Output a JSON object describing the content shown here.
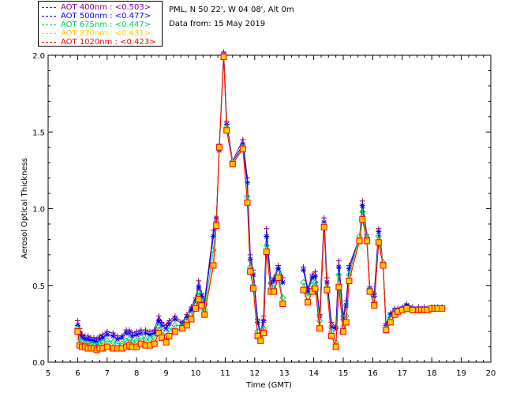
{
  "header": {
    "site": "PML, N 50 22', W 04 08', Alt 0m",
    "date": "Data from: 15 May 2019"
  },
  "chart_data": {
    "type": "line",
    "xlabel": "Time (GMT)",
    "ylabel": "Aerosol Optical Thickness",
    "xlim": [
      5,
      20
    ],
    "ylim": [
      0.0,
      2.0
    ],
    "xticks": [
      5,
      6,
      7,
      8,
      9,
      10,
      11,
      12,
      13,
      14,
      15,
      16,
      17,
      18,
      19,
      20
    ],
    "yticks": [
      "0.0",
      "0.5",
      "1.0",
      "1.5",
      "2.0"
    ],
    "yticks_values": [
      0.0,
      0.5,
      1.0,
      1.5,
      2.0
    ],
    "series": [
      {
        "name": "AOT  400nm : <0.503>",
        "color": "#800080",
        "marker": "plus",
        "x": [
          6.0,
          6.07,
          6.15,
          6.25,
          6.35,
          6.45,
          6.55,
          6.65,
          6.75,
          6.85,
          7.0,
          7.2,
          7.35,
          7.5,
          7.65,
          7.75,
          7.85,
          8.0,
          8.15,
          8.3,
          8.45,
          8.6,
          8.75,
          8.85,
          9.0,
          9.1,
          9.3,
          9.55,
          9.7,
          9.85,
          10.0,
          10.1,
          10.2,
          10.3,
          10.6,
          10.7,
          10.8,
          10.95,
          11.05,
          11.25,
          11.6,
          11.75,
          11.85,
          11.95,
          12.1,
          12.2,
          12.3,
          12.4,
          12.55,
          12.65,
          12.8,
          12.95,
          13.65,
          13.8,
          13.95,
          14.05,
          14.2,
          14.35,
          14.45,
          14.6,
          14.75,
          14.85,
          15.0,
          15.1,
          15.2,
          15.55,
          15.65,
          15.8,
          15.9,
          16.05,
          16.2,
          16.35,
          16.45,
          16.6,
          16.75,
          16.85,
          17.0,
          17.15,
          17.35,
          17.55,
          17.65,
          17.75,
          17.85,
          18.0,
          18.1,
          18.2,
          18.35
        ],
        "y": [
          0.27,
          0.22,
          0.18,
          0.17,
          0.17,
          0.16,
          0.16,
          0.15,
          0.17,
          0.18,
          0.2,
          0.19,
          0.17,
          0.17,
          0.21,
          0.21,
          0.19,
          0.2,
          0.21,
          0.21,
          0.2,
          0.21,
          0.3,
          0.26,
          0.24,
          0.27,
          0.3,
          0.26,
          0.31,
          0.36,
          0.42,
          0.53,
          0.45,
          0.4,
          0.86,
          0.92,
          1.42,
          2.02,
          1.57,
          1.31,
          1.45,
          1.2,
          0.7,
          0.6,
          0.28,
          0.19,
          0.3,
          0.87,
          0.52,
          0.55,
          0.63,
          0.55,
          0.62,
          0.48,
          0.57,
          0.59,
          0.31,
          0.94,
          0.55,
          0.26,
          0.23,
          0.66,
          0.3,
          0.4,
          0.63,
          0.81,
          1.05,
          0.83,
          0.49,
          0.45,
          0.87,
          0.65,
          0.25,
          0.32,
          0.35,
          0.35,
          0.36,
          0.38,
          0.36,
          0.36,
          0.35,
          0.36,
          0.35,
          0.36,
          0.36,
          0.36,
          0.36
        ]
      },
      {
        "name": "AOT  500nm : <0.477>",
        "color": "#0000ff",
        "marker": "asterisk",
        "x": [
          6.0,
          6.07,
          6.15,
          6.25,
          6.35,
          6.45,
          6.55,
          6.65,
          6.75,
          6.85,
          7.0,
          7.2,
          7.35,
          7.5,
          7.65,
          7.75,
          7.85,
          8.0,
          8.15,
          8.3,
          8.45,
          8.6,
          8.75,
          8.85,
          9.0,
          9.1,
          9.3,
          9.55,
          9.7,
          9.85,
          10.0,
          10.1,
          10.2,
          10.3,
          10.6,
          10.7,
          10.8,
          10.95,
          11.05,
          11.25,
          11.6,
          11.75,
          11.85,
          11.95,
          12.1,
          12.2,
          12.3,
          12.4,
          12.55,
          12.65,
          12.8,
          12.95,
          13.65,
          13.8,
          13.95,
          14.05,
          14.2,
          14.35,
          14.45,
          14.6,
          14.75,
          14.85,
          15.0,
          15.1,
          15.2,
          15.55,
          15.65,
          15.8,
          15.9,
          16.05,
          16.2,
          16.35,
          16.45,
          16.6,
          16.75,
          16.85,
          17.0,
          17.15,
          17.35,
          17.55,
          17.65,
          17.75,
          17.85,
          18.0,
          18.1,
          18.2,
          18.35
        ],
        "y": [
          0.24,
          0.19,
          0.16,
          0.15,
          0.15,
          0.14,
          0.14,
          0.13,
          0.15,
          0.16,
          0.18,
          0.17,
          0.15,
          0.16,
          0.19,
          0.19,
          0.17,
          0.18,
          0.19,
          0.19,
          0.18,
          0.19,
          0.27,
          0.24,
          0.22,
          0.25,
          0.28,
          0.25,
          0.29,
          0.34,
          0.4,
          0.49,
          0.43,
          0.38,
          0.82,
          0.94,
          1.38,
          2.01,
          1.55,
          1.3,
          1.42,
          1.17,
          0.67,
          0.57,
          0.26,
          0.17,
          0.27,
          0.82,
          0.51,
          0.53,
          0.61,
          0.52,
          0.6,
          0.46,
          0.55,
          0.56,
          0.3,
          0.91,
          0.52,
          0.23,
          0.22,
          0.62,
          0.28,
          0.37,
          0.61,
          0.8,
          1.02,
          0.81,
          0.48,
          0.43,
          0.85,
          0.63,
          0.24,
          0.31,
          0.34,
          0.34,
          0.35,
          0.37,
          0.35,
          0.35,
          0.34,
          0.35,
          0.34,
          0.35,
          0.35,
          0.35,
          0.35
        ]
      },
      {
        "name": "AOT  675nm : <0.447>",
        "color": "#00cc66",
        "marker": "diamond",
        "x": [
          6.0,
          6.07,
          6.15,
          6.25,
          6.35,
          6.45,
          6.55,
          6.65,
          6.75,
          6.85,
          7.0,
          7.2,
          7.35,
          7.5,
          7.65,
          7.75,
          7.85,
          8.0,
          8.15,
          8.3,
          8.45,
          8.6,
          8.75,
          8.85,
          9.0,
          9.1,
          9.3,
          9.55,
          9.7,
          9.85,
          10.0,
          10.1,
          10.2,
          10.3,
          10.6,
          10.7,
          10.8,
          10.95,
          11.05,
          11.25,
          11.6,
          11.75,
          11.85,
          11.95,
          12.1,
          12.2,
          12.3,
          12.4,
          12.55,
          12.65,
          12.8,
          12.95,
          13.65,
          13.8,
          13.95,
          14.05,
          14.2,
          14.35,
          14.45,
          14.6,
          14.75,
          14.85,
          15.0,
          15.1,
          15.2,
          15.55,
          15.65,
          15.8,
          15.9,
          16.05,
          16.2,
          16.35,
          16.45,
          16.6,
          16.75,
          16.85,
          17.0,
          17.15,
          17.35,
          17.55,
          17.65,
          17.75,
          17.85,
          18.0,
          18.1,
          18.2,
          18.35
        ],
        "y": [
          0.22,
          0.15,
          0.13,
          0.12,
          0.12,
          0.12,
          0.11,
          0.11,
          0.12,
          0.13,
          0.14,
          0.13,
          0.12,
          0.12,
          0.14,
          0.15,
          0.13,
          0.14,
          0.16,
          0.15,
          0.15,
          0.16,
          0.23,
          0.2,
          0.17,
          0.21,
          0.24,
          0.24,
          0.27,
          0.31,
          0.38,
          0.45,
          0.4,
          0.34,
          0.73,
          0.91,
          1.4,
          2.0,
          1.53,
          1.3,
          1.4,
          1.08,
          0.62,
          0.5,
          0.2,
          0.15,
          0.22,
          0.76,
          0.48,
          0.48,
          0.58,
          0.42,
          0.52,
          0.43,
          0.5,
          0.52,
          0.27,
          0.89,
          0.49,
          0.2,
          0.13,
          0.57,
          0.23,
          0.3,
          0.57,
          0.82,
          0.98,
          0.81,
          0.47,
          0.39,
          0.82,
          0.65,
          0.22,
          0.29,
          0.33,
          0.33,
          0.34,
          0.35,
          0.34,
          0.34,
          0.34,
          0.34,
          0.34,
          0.35,
          0.35,
          0.35,
          0.35
        ]
      },
      {
        "name": "AOT  870nm : <0.431>",
        "color": "#ffcc00",
        "marker": "triangle",
        "x": [
          6.0,
          6.07,
          6.15,
          6.25,
          6.35,
          6.45,
          6.55,
          6.65,
          6.75,
          6.85,
          7.0,
          7.2,
          7.35,
          7.5,
          7.65,
          7.75,
          7.85,
          8.0,
          8.15,
          8.3,
          8.45,
          8.6,
          8.75,
          8.85,
          9.0,
          9.1,
          9.3,
          9.55,
          9.7,
          9.85,
          10.0,
          10.1,
          10.2,
          10.3,
          10.6,
          10.7,
          10.8,
          10.95,
          11.05,
          11.25,
          11.6,
          11.75,
          11.85,
          11.95,
          12.1,
          12.2,
          12.3,
          12.4,
          12.55,
          12.65,
          12.8,
          12.95,
          13.65,
          13.8,
          13.95,
          14.05,
          14.2,
          14.35,
          14.45,
          14.6,
          14.75,
          14.85,
          15.0,
          15.1,
          15.2,
          15.55,
          15.65,
          15.8,
          15.9,
          16.05,
          16.2,
          16.35,
          16.45,
          16.6,
          16.75,
          16.85,
          17.0,
          17.15,
          17.35,
          17.55,
          17.65,
          17.75,
          17.85,
          18.0,
          18.1,
          18.2,
          18.35
        ],
        "y": [
          0.21,
          0.12,
          0.11,
          0.1,
          0.1,
          0.1,
          0.09,
          0.09,
          0.1,
          0.1,
          0.11,
          0.1,
          0.09,
          0.1,
          0.11,
          0.12,
          0.1,
          0.11,
          0.13,
          0.12,
          0.12,
          0.13,
          0.2,
          0.17,
          0.14,
          0.18,
          0.21,
          0.22,
          0.25,
          0.29,
          0.36,
          0.42,
          0.38,
          0.32,
          0.66,
          0.89,
          1.4,
          1.99,
          1.52,
          1.3,
          1.39,
          1.05,
          0.6,
          0.49,
          0.18,
          0.14,
          0.2,
          0.73,
          0.47,
          0.46,
          0.56,
          0.39,
          0.48,
          0.4,
          0.47,
          0.49,
          0.24,
          0.89,
          0.48,
          0.18,
          0.11,
          0.51,
          0.21,
          0.27,
          0.54,
          0.8,
          0.94,
          0.8,
          0.46,
          0.37,
          0.79,
          0.64,
          0.21,
          0.27,
          0.32,
          0.33,
          0.34,
          0.35,
          0.34,
          0.34,
          0.34,
          0.34,
          0.34,
          0.35,
          0.35,
          0.35,
          0.35
        ]
      },
      {
        "name": "AOT 1020nm : <0.423>",
        "color": "#ff0000",
        "marker": "square",
        "x": [
          6.0,
          6.07,
          6.15,
          6.25,
          6.35,
          6.45,
          6.55,
          6.65,
          6.75,
          6.85,
          7.0,
          7.2,
          7.35,
          7.5,
          7.65,
          7.75,
          7.85,
          8.0,
          8.15,
          8.3,
          8.45,
          8.6,
          8.75,
          8.85,
          9.0,
          9.1,
          9.3,
          9.55,
          9.7,
          9.85,
          10.0,
          10.1,
          10.2,
          10.3,
          10.6,
          10.7,
          10.8,
          10.95,
          11.05,
          11.25,
          11.6,
          11.75,
          11.85,
          11.95,
          12.1,
          12.2,
          12.3,
          12.4,
          12.55,
          12.65,
          12.8,
          12.95,
          13.65,
          13.8,
          13.95,
          14.05,
          14.2,
          14.35,
          14.45,
          14.6,
          14.75,
          14.85,
          15.0,
          15.1,
          15.2,
          15.55,
          15.65,
          15.8,
          15.9,
          16.05,
          16.2,
          16.35,
          16.45,
          16.6,
          16.75,
          16.85,
          17.0,
          17.15,
          17.35,
          17.55,
          17.65,
          17.75,
          17.85,
          18.0,
          18.1,
          18.2,
          18.35
        ],
        "y": [
          0.2,
          0.11,
          0.1,
          0.1,
          0.09,
          0.09,
          0.09,
          0.08,
          0.09,
          0.09,
          0.1,
          0.09,
          0.09,
          0.09,
          0.1,
          0.11,
          0.1,
          0.1,
          0.12,
          0.11,
          0.11,
          0.12,
          0.19,
          0.16,
          0.13,
          0.17,
          0.2,
          0.22,
          0.24,
          0.28,
          0.35,
          0.41,
          0.37,
          0.31,
          0.63,
          0.89,
          1.4,
          1.99,
          1.51,
          1.29,
          1.39,
          1.04,
          0.59,
          0.48,
          0.17,
          0.14,
          0.19,
          0.72,
          0.46,
          0.46,
          0.55,
          0.38,
          0.47,
          0.39,
          0.46,
          0.48,
          0.22,
          0.88,
          0.47,
          0.17,
          0.1,
          0.49,
          0.2,
          0.26,
          0.53,
          0.79,
          0.93,
          0.79,
          0.46,
          0.37,
          0.78,
          0.63,
          0.21,
          0.26,
          0.31,
          0.33,
          0.34,
          0.35,
          0.34,
          0.34,
          0.34,
          0.34,
          0.34,
          0.35,
          0.35,
          0.35,
          0.35
        ]
      }
    ]
  }
}
